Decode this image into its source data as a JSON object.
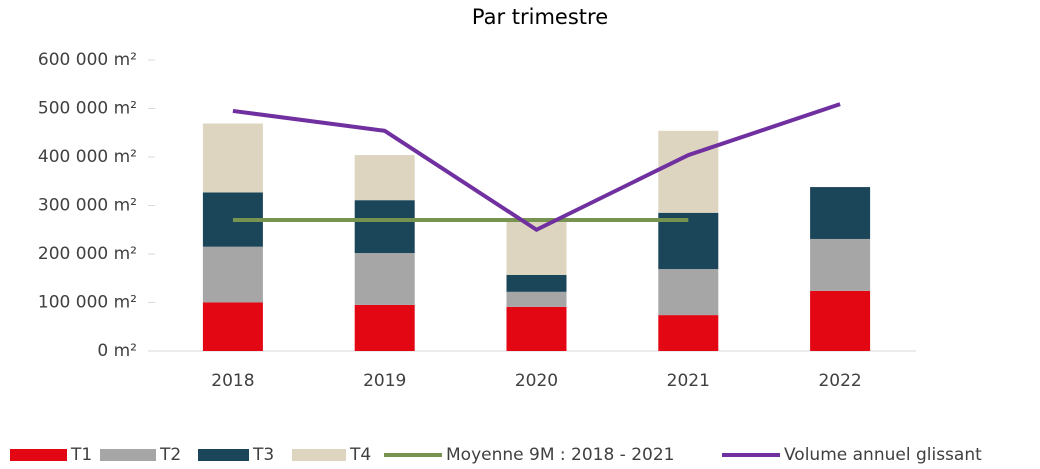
{
  "chart_data": {
    "type": "bar",
    "title": "Par trimestre",
    "categories": [
      "2018",
      "2019",
      "2020",
      "2021",
      "2022"
    ],
    "series": [
      {
        "name": "T1",
        "color": "#e30613",
        "values": [
          100000,
          95000,
          91000,
          74000,
          124000
        ]
      },
      {
        "name": "T2",
        "color": "#a6a6a6",
        "values": [
          115000,
          107000,
          31000,
          95000,
          107000
        ]
      },
      {
        "name": "T3",
        "color": "#1b4559",
        "values": [
          112000,
          109000,
          35000,
          116000,
          107000
        ]
      },
      {
        "name": "T4",
        "color": "#ddd5c0",
        "values": [
          142000,
          93000,
          113000,
          169000,
          null
        ]
      },
      {
        "name": "Moyenne 9M : 2018 - 2021",
        "color": "#76934f",
        "type": "line",
        "values": [
          270000,
          270000,
          270000,
          270000,
          null
        ]
      },
      {
        "name": "Volume annuel glissant",
        "color": "#7030a0",
        "type": "line",
        "values": [
          495000,
          454000,
          250000,
          404000,
          509000
        ]
      }
    ],
    "ylim": [
      0,
      600000
    ],
    "yticks": [
      {
        "value": 0,
        "label": "0 m²"
      },
      {
        "value": 100000,
        "label": "100 000 m²"
      },
      {
        "value": 200000,
        "label": "200 000 m²"
      },
      {
        "value": 300000,
        "label": "300 000 m²"
      },
      {
        "value": 400000,
        "label": "400 000 m²"
      },
      {
        "value": 500000,
        "label": "500 000 m²"
      },
      {
        "value": 600000,
        "label": "600 000 m²"
      }
    ],
    "stacked": true,
    "legend": "bottom"
  }
}
